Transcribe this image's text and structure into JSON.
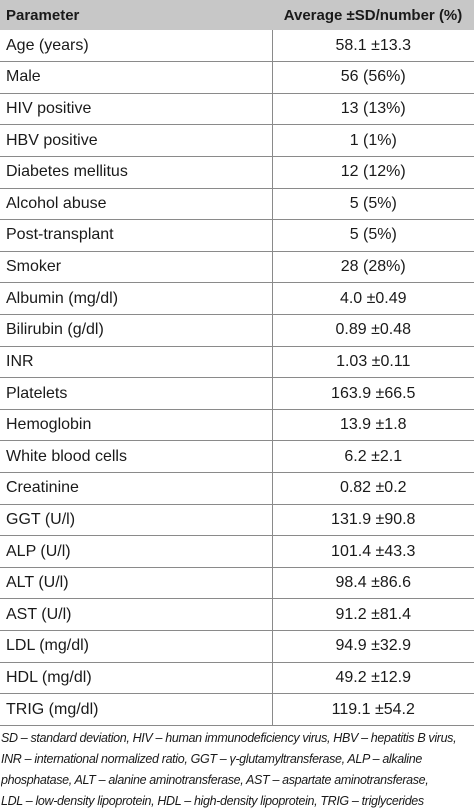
{
  "table": {
    "headers": {
      "parameter": "Parameter",
      "value": "Average ±SD/number (%)"
    },
    "rows": [
      {
        "parameter": "Age (years)",
        "value": "58.1 ±13.3"
      },
      {
        "parameter": "Male",
        "value": "56 (56%)"
      },
      {
        "parameter": "HIV positive",
        "value": "13 (13%)"
      },
      {
        "parameter": "HBV positive",
        "value": "1 (1%)"
      },
      {
        "parameter": "Diabetes mellitus",
        "value": "12 (12%)"
      },
      {
        "parameter": "Alcohol abuse",
        "value": "5 (5%)"
      },
      {
        "parameter": "Post-transplant",
        "value": "5 (5%)"
      },
      {
        "parameter": "Smoker",
        "value": "28 (28%)"
      },
      {
        "parameter": "Albumin (mg/dl)",
        "value": "4.0 ±0.49"
      },
      {
        "parameter": "Bilirubin (g/dl)",
        "value": "0.89 ±0.48"
      },
      {
        "parameter": "INR",
        "value": "1.03 ±0.11"
      },
      {
        "parameter": "Platelets",
        "value": "163.9 ±66.5"
      },
      {
        "parameter": "Hemoglobin",
        "value": "13.9 ±1.8"
      },
      {
        "parameter": "White blood cells",
        "value": "6.2 ±2.1"
      },
      {
        "parameter": "Creatinine",
        "value": "0.82 ±0.2"
      },
      {
        "parameter": "GGT (U/l)",
        "value": "131.9 ±90.8"
      },
      {
        "parameter": "ALP (U/l)",
        "value": "101.4 ±43.3"
      },
      {
        "parameter": "ALT (U/l)",
        "value": "98.4 ±86.6"
      },
      {
        "parameter": "AST (U/l)",
        "value": "91.2 ±81.4"
      },
      {
        "parameter": "LDL (mg/dl)",
        "value": "94.9 ±32.9"
      },
      {
        "parameter": "HDL (mg/dl)",
        "value": "49.2 ±12.9"
      },
      {
        "parameter": "TRIG (mg/dl)",
        "value": "119.1 ±54.2"
      }
    ]
  },
  "footnote": {
    "lines": [
      "SD – standard deviation, HIV – human immunodeficiency virus, HBV – hepatitis B virus,",
      "INR – international normalized ratio, GGT – γ-glutamyltransferase, ALP – alkaline",
      "phosphatase, ALT – alanine aminotransferase, AST – aspartate aminotransferase,",
      "LDL – low-density lipoprotein, HDL – high-density lipoprotein, TRIG – triglycerides"
    ]
  },
  "colors": {
    "header_background": "#c7c7c7",
    "row_border": "#8a8a8a",
    "text": "#1a1a1a"
  }
}
